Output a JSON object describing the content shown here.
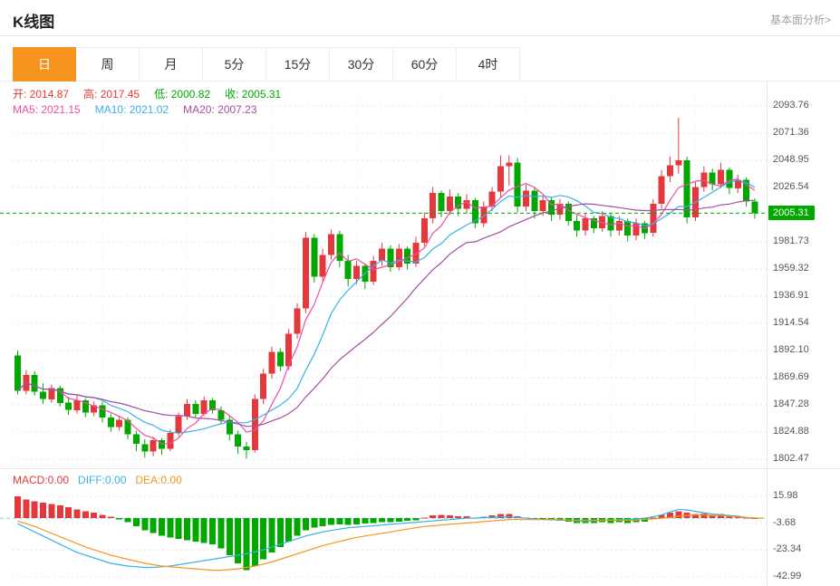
{
  "header": {
    "title": "K线图",
    "link_label": "基本面分析>"
  },
  "tabs": [
    {
      "label": "日",
      "name": "tab-day",
      "active": true
    },
    {
      "label": "周",
      "name": "tab-week",
      "active": false
    },
    {
      "label": "月",
      "name": "tab-month",
      "active": false
    },
    {
      "label": "5分",
      "name": "tab-5min",
      "active": false
    },
    {
      "label": "15分",
      "name": "tab-15min",
      "active": false
    },
    {
      "label": "30分",
      "name": "tab-30min",
      "active": false
    },
    {
      "label": "60分",
      "name": "tab-60min",
      "active": false
    },
    {
      "label": "4时",
      "name": "tab-4hour",
      "active": false
    }
  ],
  "legend": {
    "ohlc": [
      {
        "name": "open-legend",
        "label": "开:",
        "value": "2014.87",
        "color": "#e4393c"
      },
      {
        "name": "high-legend",
        "label": "高:",
        "value": "2017.45",
        "color": "#e4393c"
      },
      {
        "name": "low-legend",
        "label": "低:",
        "value": "2000.82",
        "color": "#00a800"
      },
      {
        "name": "close-legend",
        "label": "收:",
        "value": "2005.31",
        "color": "#00a800"
      }
    ],
    "ma": [
      {
        "name": "ma5-legend",
        "label": "MA5:",
        "value": "2021.15",
        "color": "#f04ea0"
      },
      {
        "name": "ma10-legend",
        "label": "MA10:",
        "value": "2021.02",
        "color": "#38b2e6"
      },
      {
        "name": "ma20-legend",
        "label": "MA20:",
        "value": "2007.23",
        "color": "#a152a2"
      }
    ],
    "macd": [
      {
        "name": "macd-legend",
        "label": "MACD:",
        "value": "0.00",
        "color": "#e4393c"
      },
      {
        "name": "diff-legend",
        "label": "DIFF:",
        "value": "0.00",
        "color": "#38b2e6"
      },
      {
        "name": "dea-legend",
        "label": "DEA:",
        "value": "0.00",
        "color": "#f7941d"
      }
    ]
  },
  "colors": {
    "up": "#e4393c",
    "down": "#00a800",
    "ma5": "#f04ea0",
    "ma10": "#38b2e6",
    "ma20": "#a152a2",
    "accent": "#f7941d",
    "badge_bg": "#00a800",
    "diff_line": "#38b2e6",
    "dea_line": "#f7941d",
    "grid": "#e9e9e9",
    "vgrid": "#f2f2f2",
    "zero_dash": "#7ad4e4",
    "current_line": "#00a800"
  },
  "chart_data": {
    "type": "candlestick",
    "title": "K线图",
    "timeframe": "日",
    "grid": true,
    "ylim": [
      1802.47,
      2093.76
    ],
    "price_axis_top_value": 2093.76,
    "price_axis_step": 22.405,
    "price_axis_labels": [
      "2093.76",
      "2071.36",
      "2048.95",
      "2026.54",
      "2005.31",
      "1981.73",
      "1959.32",
      "1936.91",
      "1914.54",
      "1892.10",
      "1869.69",
      "1847.28",
      "1824.88",
      "1802.47"
    ],
    "current_index": 4,
    "current_price": "2005.31",
    "current_price_value": 2005.31,
    "ma_periods": [
      5,
      10,
      20
    ],
    "candles": [
      [
        1888,
        1892,
        1856,
        1859
      ],
      [
        1859,
        1876,
        1856,
        1872
      ],
      [
        1872,
        1875,
        1855,
        1858
      ],
      [
        1858,
        1865,
        1848,
        1852
      ],
      [
        1852,
        1864,
        1849,
        1861
      ],
      [
        1861,
        1863,
        1846,
        1849
      ],
      [
        1849,
        1854,
        1839,
        1843
      ],
      [
        1843,
        1855,
        1840,
        1851
      ],
      [
        1851,
        1853,
        1837,
        1841
      ],
      [
        1841,
        1850,
        1838,
        1847
      ],
      [
        1847,
        1850,
        1833,
        1837
      ],
      [
        1837,
        1840,
        1825,
        1829
      ],
      [
        1829,
        1838,
        1826,
        1835
      ],
      [
        1835,
        1837,
        1819,
        1823
      ],
      [
        1823,
        1826,
        1809,
        1815
      ],
      [
        1815,
        1819,
        1804,
        1809
      ],
      [
        1809,
        1821,
        1805,
        1818
      ],
      [
        1818,
        1820,
        1806,
        1811
      ],
      [
        1811,
        1827,
        1809,
        1824
      ],
      [
        1824,
        1841,
        1821,
        1838
      ],
      [
        1838,
        1852,
        1835,
        1848
      ],
      [
        1848,
        1851,
        1836,
        1840
      ],
      [
        1840,
        1854,
        1838,
        1851
      ],
      [
        1851,
        1853,
        1840,
        1843
      ],
      [
        1843,
        1846,
        1831,
        1835
      ],
      [
        1835,
        1838,
        1818,
        1823
      ],
      [
        1823,
        1826,
        1807,
        1813
      ],
      [
        1813,
        1817,
        1803,
        1810
      ],
      [
        1810,
        1856,
        1808,
        1852
      ],
      [
        1852,
        1877,
        1848,
        1873
      ],
      [
        1873,
        1895,
        1869,
        1891
      ],
      [
        1891,
        1894,
        1875,
        1879
      ],
      [
        1879,
        1910,
        1876,
        1906
      ],
      [
        1906,
        1931,
        1902,
        1927
      ],
      [
        1927,
        1990,
        1923,
        1985
      ],
      [
        1985,
        1988,
        1948,
        1953
      ],
      [
        1953,
        1976,
        1949,
        1971
      ],
      [
        1971,
        1992,
        1967,
        1988
      ],
      [
        1988,
        1991,
        1961,
        1966
      ],
      [
        1966,
        1971,
        1945,
        1951
      ],
      [
        1951,
        1966,
        1947,
        1962
      ],
      [
        1962,
        1964,
        1943,
        1949
      ],
      [
        1949,
        1970,
        1946,
        1966
      ],
      [
        1966,
        1981,
        1962,
        1976
      ],
      [
        1976,
        1979,
        1957,
        1961
      ],
      [
        1961,
        1980,
        1958,
        1976
      ],
      [
        1976,
        1978,
        1959,
        1964
      ],
      [
        1964,
        1986,
        1961,
        1981
      ],
      [
        1981,
        2006,
        1978,
        2001
      ],
      [
        2001,
        2027,
        1997,
        2022
      ],
      [
        2022,
        2024,
        2002,
        2007
      ],
      [
        2007,
        2025,
        2004,
        2019
      ],
      [
        2019,
        2022,
        2003,
        2009
      ],
      [
        2009,
        2021,
        2005,
        2016
      ],
      [
        2016,
        2018,
        1993,
        1997
      ],
      [
        1997,
        2015,
        1994,
        2011
      ],
      [
        2011,
        2027,
        2007,
        2023
      ],
      [
        2023,
        2053,
        2018,
        2044
      ],
      [
        2044,
        2053,
        2028,
        2047
      ],
      [
        2047,
        2051,
        2006,
        2011
      ],
      [
        2011,
        2029,
        2007,
        2024
      ],
      [
        2024,
        2026,
        2001,
        2007
      ],
      [
        2007,
        2020,
        2003,
        2016
      ],
      [
        2016,
        2018,
        1999,
        2004
      ],
      [
        2004,
        2017,
        2000,
        2013
      ],
      [
        2013,
        2015,
        1995,
        1999
      ],
      [
        1999,
        2004,
        1986,
        1991
      ],
      [
        1991,
        2005,
        1987,
        2001
      ],
      [
        2001,
        2003,
        1989,
        1993
      ],
      [
        1993,
        2007,
        1990,
        2003
      ],
      [
        2003,
        2005,
        1986,
        1991
      ],
      [
        1991,
        2003,
        1987,
        1999
      ],
      [
        1999,
        2001,
        1982,
        1987
      ],
      [
        1987,
        2001,
        1983,
        1997
      ],
      [
        1997,
        1999,
        1984,
        1989
      ],
      [
        1989,
        2017,
        1986,
        2013
      ],
      [
        2013,
        2041,
        2009,
        2036
      ],
      [
        2036,
        2052,
        2031,
        2045
      ],
      [
        2045,
        2084,
        2038,
        2049
      ],
      [
        2049,
        2052,
        1997,
        2002
      ],
      [
        2002,
        2031,
        1999,
        2027
      ],
      [
        2027,
        2044,
        2023,
        2039
      ],
      [
        2039,
        2042,
        2024,
        2029
      ],
      [
        2029,
        2047,
        2026,
        2041
      ],
      [
        2041,
        2043,
        2021,
        2026
      ],
      [
        2026,
        2037,
        2022,
        2033
      ],
      [
        2033,
        2035,
        2011,
        2015
      ],
      [
        2014.87,
        2017.45,
        2000.82,
        2005.31
      ]
    ],
    "macd": {
      "axis_labels": [
        "15.98",
        "-3.68",
        "-23.34",
        "-42.99"
      ],
      "axis_top_value": 15.98,
      "axis_step": 19.655,
      "hist": [
        16,
        13.5,
        12.5,
        11.5,
        10.5,
        9.5,
        8,
        6.5,
        5,
        4,
        2.5,
        1,
        -1,
        -3,
        -6,
        -9,
        -11,
        -13,
        -14,
        -15,
        -16,
        -17,
        -18,
        -19,
        -22,
        -27,
        -33,
        -38,
        -35,
        -30,
        -25,
        -21,
        -17,
        -13,
        -9,
        -7,
        -6,
        -5,
        -4.5,
        -5,
        -4.5,
        -4,
        -3.5,
        -3,
        -3,
        -2.5,
        -2,
        -1.5,
        0.5,
        2,
        2.5,
        2,
        1.5,
        1.5,
        0.5,
        1,
        2,
        3,
        3,
        1.5,
        0.5,
        -0.5,
        -1,
        -1.5,
        -2,
        -2.5,
        -3.5,
        -3.5,
        -3.5,
        -3,
        -3.5,
        -3,
        -3.5,
        -3,
        -2.5,
        0.5,
        2.5,
        4,
        5,
        4,
        3,
        3.5,
        2.5,
        3,
        1.5,
        1,
        0.5,
        0
      ],
      "diff": [
        -4,
        -7,
        -10,
        -13,
        -16,
        -19,
        -22,
        -25,
        -27,
        -29,
        -31,
        -33,
        -34,
        -35,
        -35.5,
        -36,
        -36,
        -35.5,
        -35,
        -34,
        -33,
        -32,
        -31,
        -30,
        -29,
        -28,
        -27,
        -26,
        -24.5,
        -23,
        -21,
        -19,
        -17,
        -15,
        -13,
        -11.5,
        -10,
        -9,
        -8,
        -7,
        -6.5,
        -6,
        -5.5,
        -5,
        -4.5,
        -4,
        -3.5,
        -3,
        -2.5,
        -2,
        -1.5,
        -1,
        -0.5,
        0,
        0,
        0.5,
        0.5,
        1,
        1,
        0.5,
        0,
        -0.5,
        -1,
        -1,
        -1.5,
        -1.5,
        -2,
        -2,
        -2,
        -1.5,
        -1.5,
        -1,
        -1,
        -0.5,
        0,
        1,
        2.5,
        4.5,
        6.5,
        6,
        5,
        4,
        3,
        2.5,
        2,
        1.5,
        0.5,
        0
      ],
      "dea": [
        -2,
        -4,
        -6,
        -8.5,
        -11,
        -13.5,
        -16,
        -18.5,
        -21,
        -23,
        -25,
        -27,
        -28.5,
        -30,
        -31.5,
        -33,
        -34,
        -35,
        -35.5,
        -36,
        -36.5,
        -37,
        -37.5,
        -38,
        -38,
        -37.5,
        -37,
        -36,
        -35,
        -33.5,
        -32,
        -30,
        -28,
        -26,
        -24,
        -22,
        -20,
        -18.5,
        -17,
        -15.5,
        -14,
        -13,
        -12,
        -11,
        -10,
        -9,
        -8,
        -7,
        -6,
        -5.5,
        -5,
        -4.5,
        -4,
        -3.5,
        -3,
        -2.5,
        -2,
        -1.5,
        -1,
        -1,
        -1,
        -1,
        -1,
        -1,
        -1,
        -1.5,
        -1.5,
        -1.5,
        -1.5,
        -1.5,
        -1.5,
        -1.5,
        -1.5,
        -1.5,
        -1,
        -0.5,
        0,
        0.5,
        1.5,
        2,
        2.5,
        2.5,
        2,
        2,
        1.5,
        1,
        0.5,
        0.2,
        0
      ]
    }
  }
}
